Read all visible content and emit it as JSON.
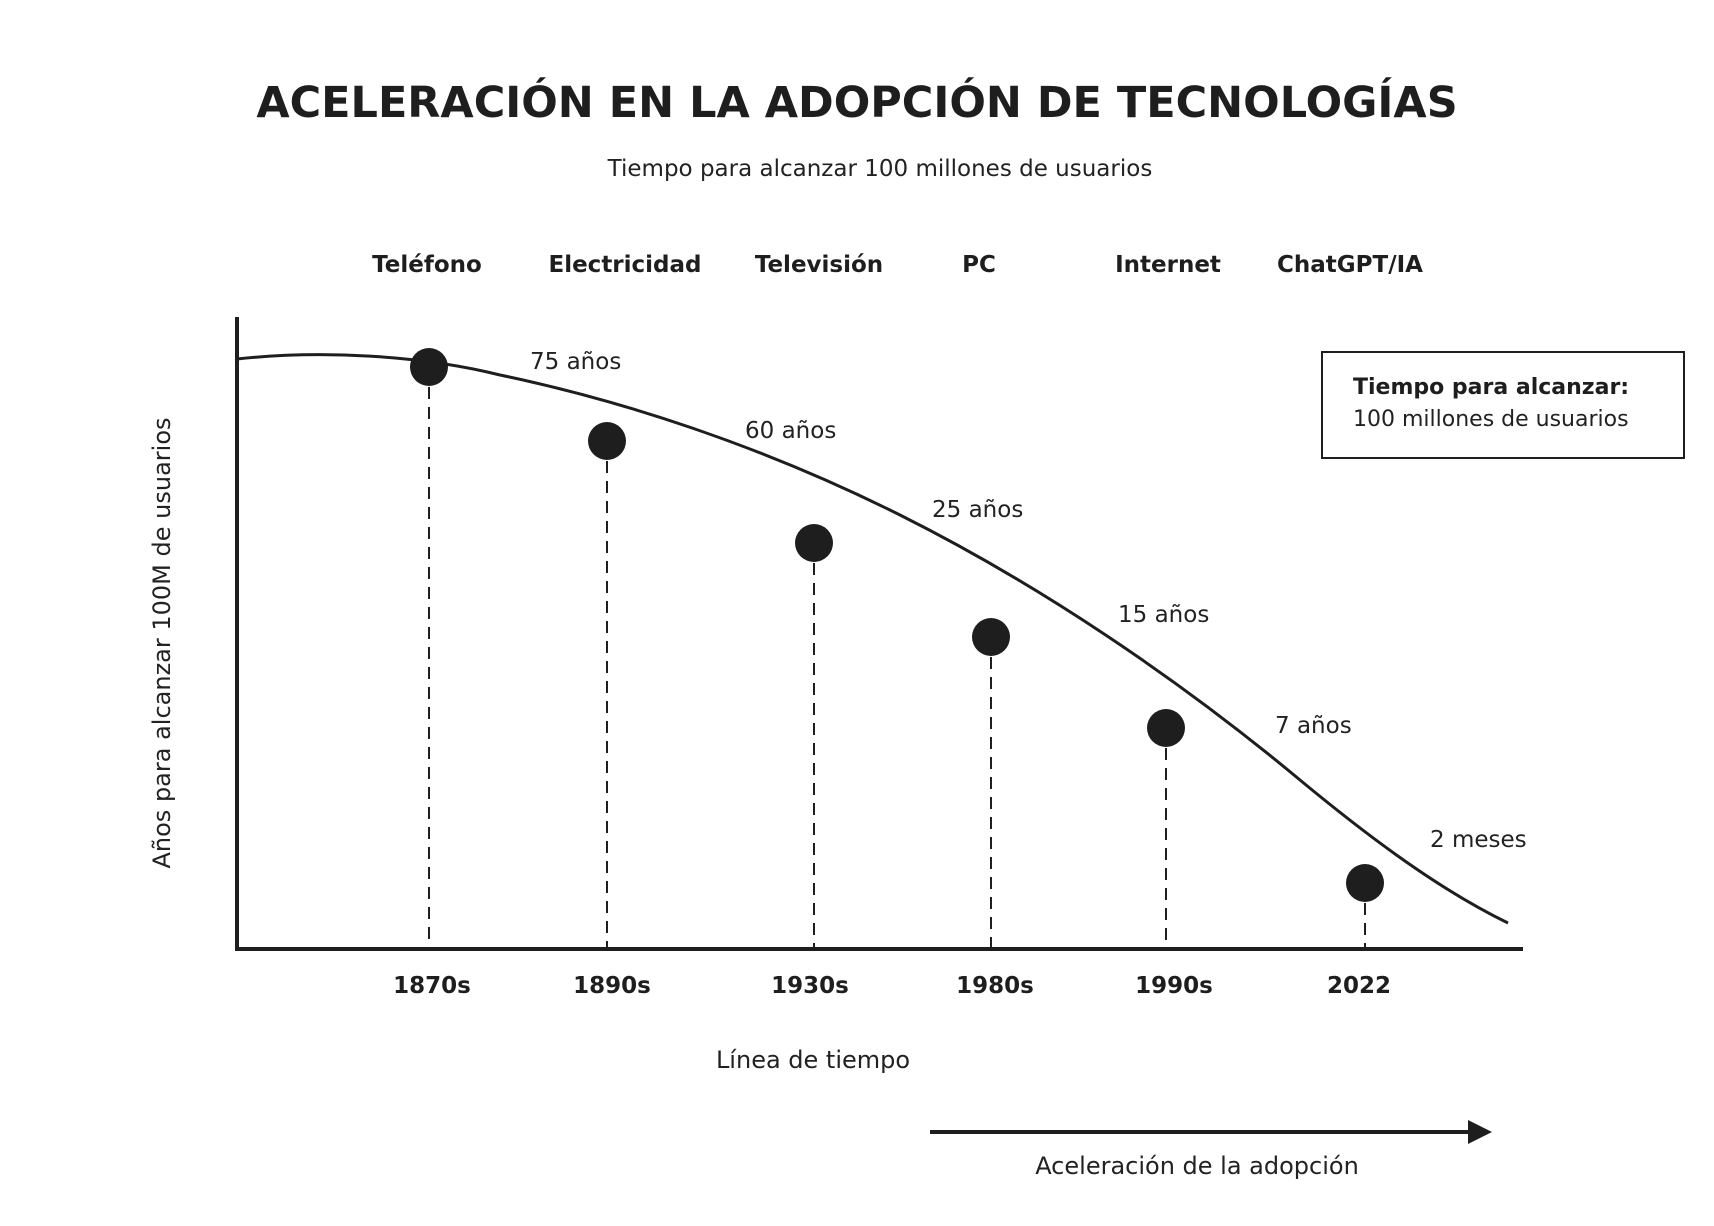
{
  "chart_data": {
    "type": "scatter",
    "title": "ACELERACIÓN EN LA ADOPCIÓN DE TECNOLOGÍAS",
    "subtitle": "Tiempo para alcanzar 100 millones de usuarios",
    "xlabel": "Línea de tiempo",
    "ylabel": "Años para alcanzar 100M de usuarios",
    "categories": [
      "Teléfono",
      "Electricidad",
      "Televisión",
      "PC",
      "Internet",
      "ChatGPT/IA"
    ],
    "x": [
      "1870s",
      "1890s",
      "1930s",
      "1980s",
      "1990s",
      "2022"
    ],
    "values": [
      75,
      60,
      25,
      15,
      7,
      0.17
    ],
    "value_labels": [
      "75 años",
      "60 años",
      "25 años",
      "15 años",
      "7 años",
      "2 meses"
    ],
    "grid": false,
    "legend": {
      "placement": "top-right",
      "title": "Tiempo para alcanzar:",
      "text": "100 millones de usuarios"
    },
    "annotation": "Aceleración de la adopción",
    "colors": {
      "ink": "#1e1e1e",
      "background": "#ffffff"
    }
  }
}
